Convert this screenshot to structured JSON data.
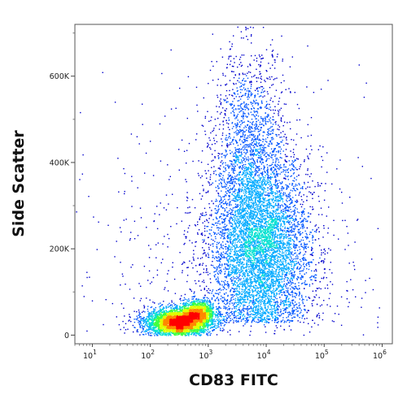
{
  "chart_data": {
    "type": "scatter",
    "subtype": "flow-cytometry density dot plot",
    "xlabel": "CD83 FITC",
    "ylabel": "Side Scatter",
    "x_scale": "log",
    "xlim": [
      5,
      1500000
    ],
    "ylim": [
      -20000,
      720000
    ],
    "x_ticks": [
      {
        "value": 10,
        "label": "10",
        "exp": "1"
      },
      {
        "value": 100,
        "label": "10",
        "exp": "2"
      },
      {
        "value": 1000,
        "label": "10",
        "exp": "3"
      },
      {
        "value": 10000,
        "label": "10",
        "exp": "4"
      },
      {
        "value": 100000,
        "label": "10",
        "exp": "5"
      },
      {
        "value": 1000000,
        "label": "10",
        "exp": "6"
      }
    ],
    "y_ticks": [
      {
        "value": 0,
        "label": "0"
      },
      {
        "value": 200000,
        "label": "200K"
      },
      {
        "value": 400000,
        "label": "400K"
      },
      {
        "value": 600000,
        "label": "600K"
      }
    ],
    "populations": [
      {
        "name": "low-FITC dense cluster",
        "x_center": 300,
        "y_center": 30000,
        "x_log_spread": 0.28,
        "y_spread": 16000,
        "weight": 0.28
      },
      {
        "name": "low-FITC dense cluster B",
        "x_center": 650,
        "y_center": 55000,
        "x_log_spread": 0.15,
        "y_spread": 14000,
        "weight": 0.08
      },
      {
        "name": "high-SSC population",
        "x_center": 8000,
        "y_center": 200000,
        "x_log_spread": 0.42,
        "y_spread": 110000,
        "weight": 0.44
      },
      {
        "name": "diffuse upper tail",
        "x_center": 5000,
        "y_center": 420000,
        "x_log_spread": 0.3,
        "y_spread": 130000,
        "weight": 0.12
      },
      {
        "name": "sparse background",
        "x_center": 3000,
        "y_center": 150000,
        "x_log_spread": 1.1,
        "y_spread": 200000,
        "weight": 0.08
      }
    ],
    "density_colors": [
      "#0000cc",
      "#0055ff",
      "#00aaff",
      "#00e0d0",
      "#40ff40",
      "#e0ff00",
      "#ff8800",
      "#ff0000"
    ],
    "grid": false
  }
}
